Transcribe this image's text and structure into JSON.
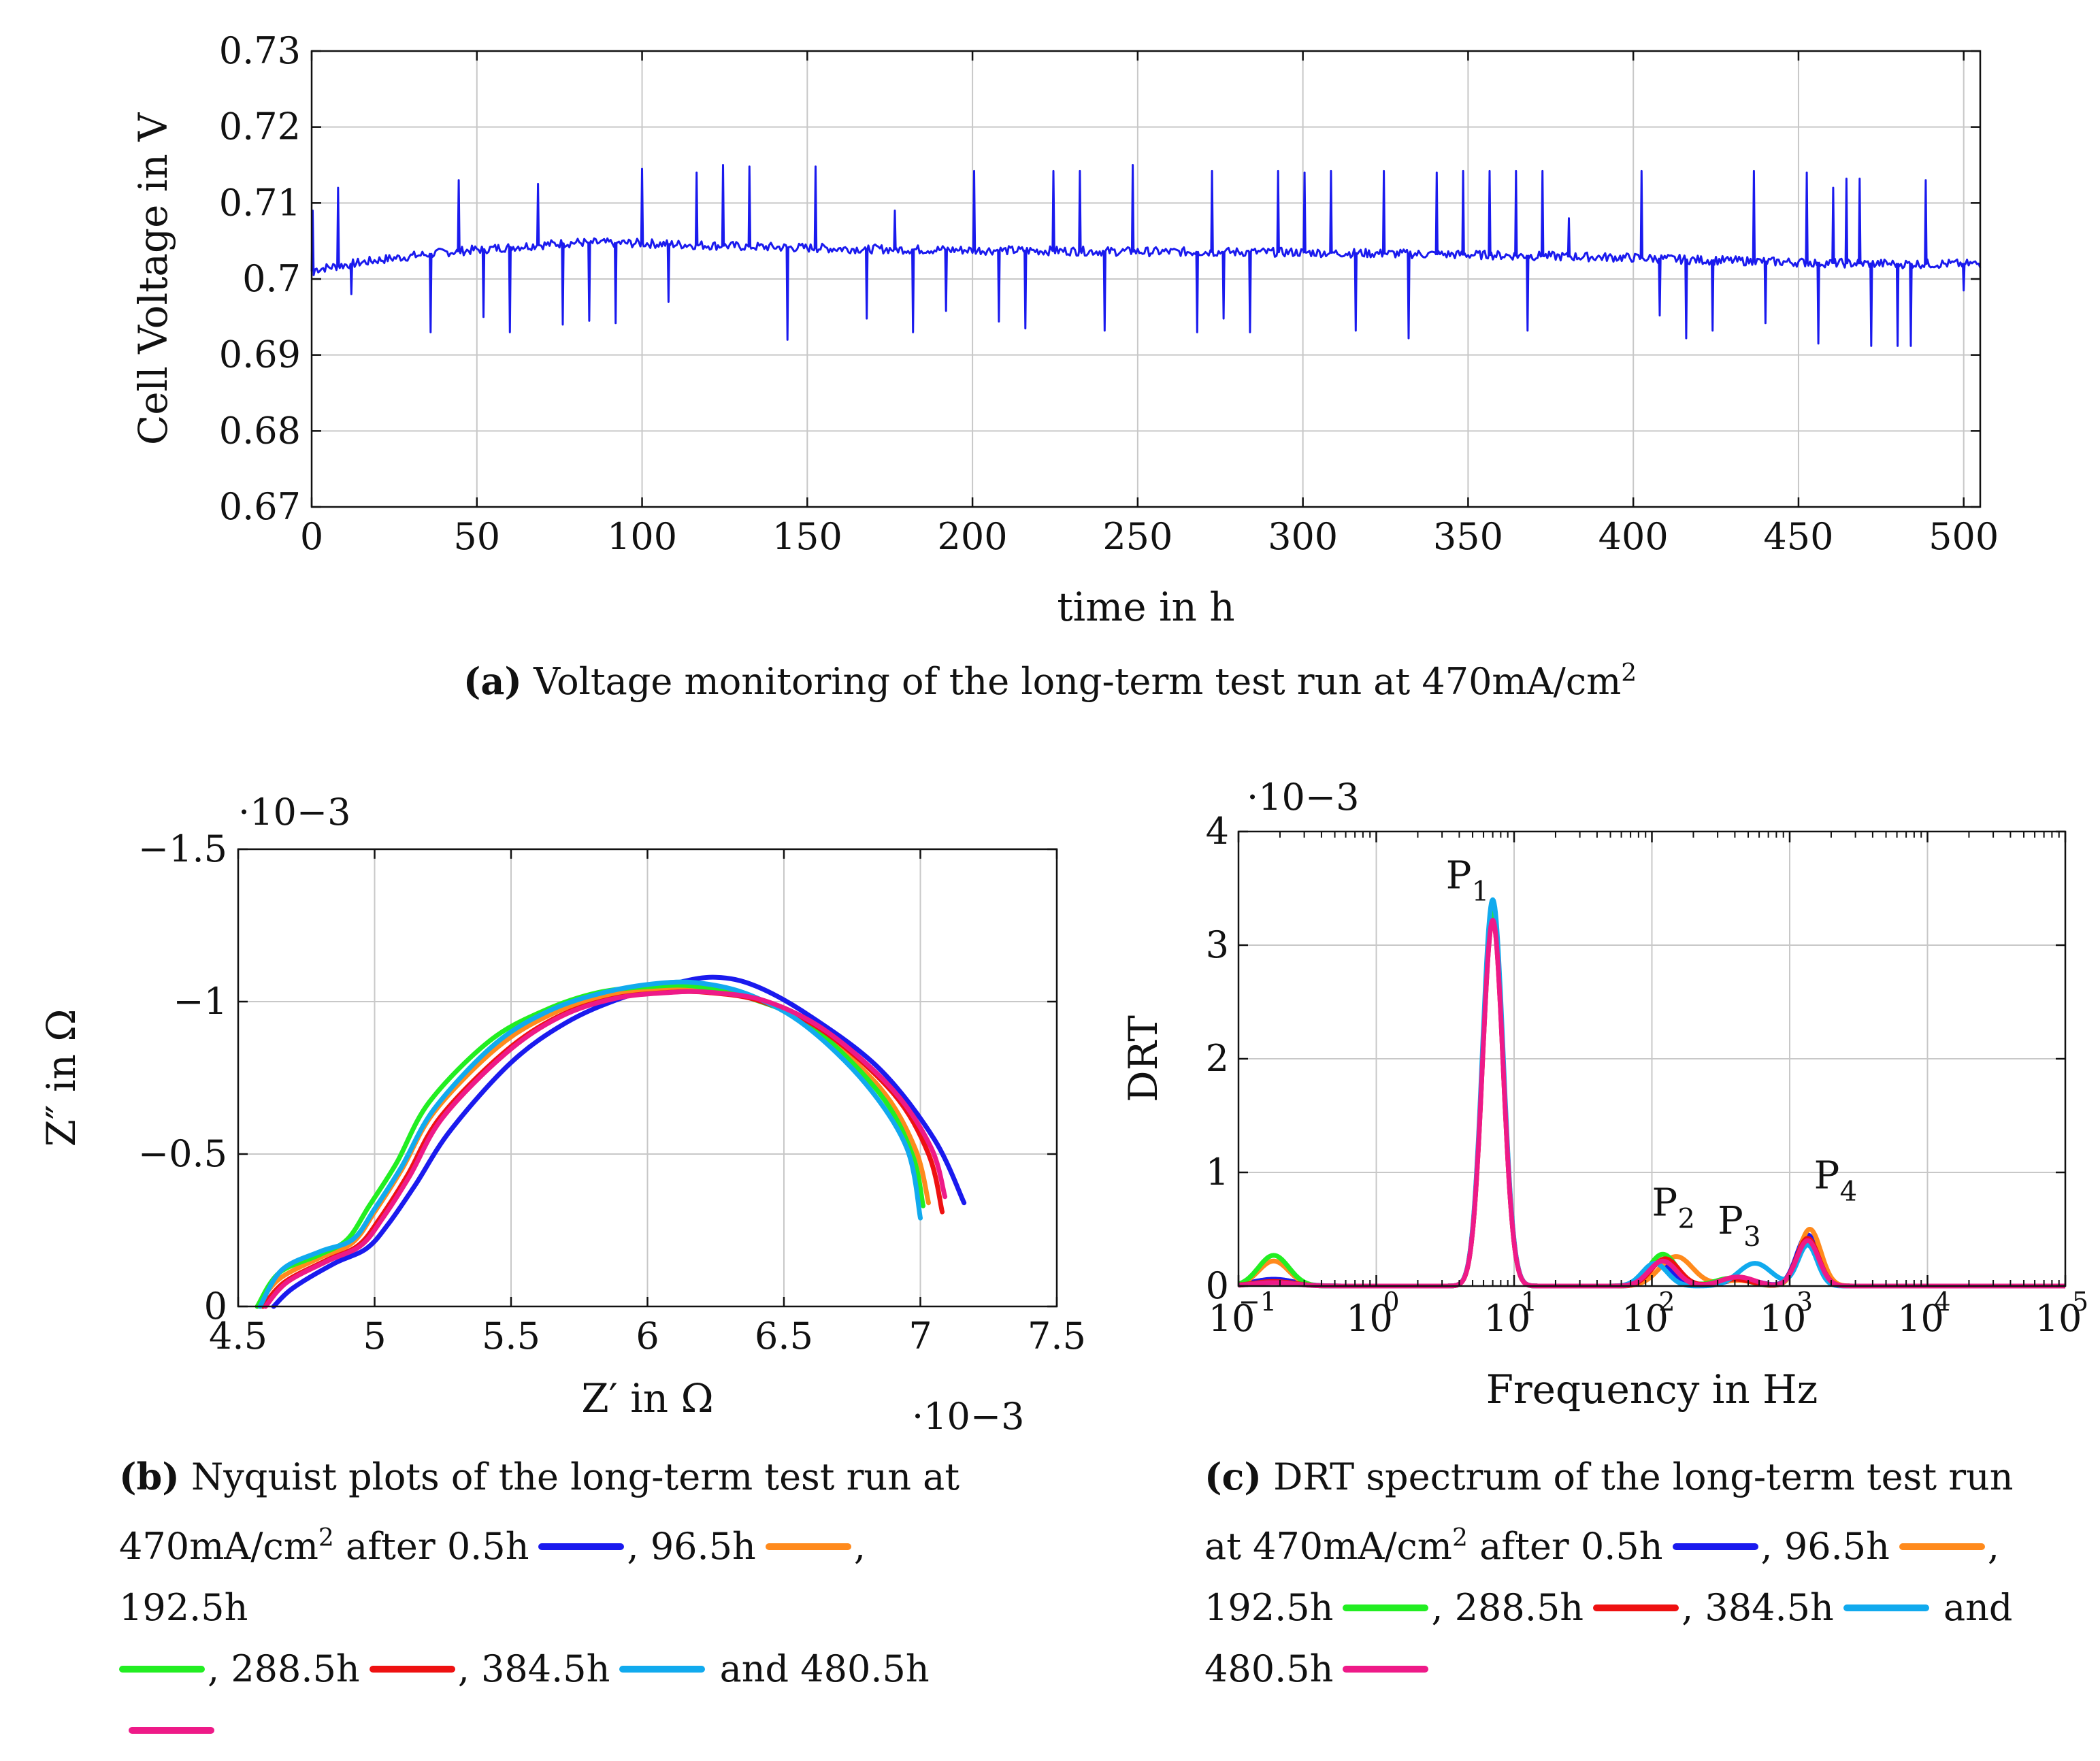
{
  "colors": {
    "s0": "#1a1aee",
    "s1": "#ff8a1c",
    "s2": "#22ee22",
    "s3": "#ee1111",
    "s4": "#11aaee",
    "s5": "#ee1a88"
  },
  "chart_data": [
    {
      "id": "a",
      "type": "line",
      "xlabel": "time in h",
      "ylabel": "Cell Voltage in V",
      "xlim": [
        0,
        505
      ],
      "ylim": [
        0.67,
        0.73
      ],
      "xticks": [
        0,
        50,
        100,
        150,
        200,
        250,
        300,
        350,
        400,
        450,
        500
      ],
      "xtick_labels": [
        "0",
        "50",
        "100",
        "150",
        "200",
        "250",
        "300",
        "350",
        "400",
        "450",
        "500"
      ],
      "yticks": [
        0.67,
        0.68,
        0.69,
        0.7,
        0.71,
        0.72,
        0.73
      ],
      "ytick_labels": [
        "0.67",
        "0.68",
        "0.69",
        "0.7",
        "0.71",
        "0.72",
        "0.73"
      ],
      "grid": true,
      "baseline": {
        "x": [
          0,
          20,
          40,
          60,
          80,
          100,
          130,
          160,
          200,
          250,
          300,
          350,
          400,
          420,
          440,
          460,
          480,
          505
        ],
        "y": [
          0.7012,
          0.7025,
          0.7035,
          0.7042,
          0.7048,
          0.7047,
          0.7043,
          0.704,
          0.7038,
          0.7036,
          0.7035,
          0.7032,
          0.7028,
          0.7025,
          0.7023,
          0.7021,
          0.702,
          0.702
        ]
      },
      "spikes_up": [
        {
          "x": 8,
          "y": 0.712
        },
        {
          "x": 44.5,
          "y": 0.713
        },
        {
          "x": 68.5,
          "y": 0.7125
        },
        {
          "x": 100,
          "y": 0.7145
        },
        {
          "x": 116.5,
          "y": 0.714
        },
        {
          "x": 124.5,
          "y": 0.715
        },
        {
          "x": 132.5,
          "y": 0.7148
        },
        {
          "x": 152.5,
          "y": 0.7148
        },
        {
          "x": 176.5,
          "y": 0.709
        },
        {
          "x": 200.5,
          "y": 0.7142
        },
        {
          "x": 224.5,
          "y": 0.7142
        },
        {
          "x": 232.5,
          "y": 0.7142
        },
        {
          "x": 248.5,
          "y": 0.715
        },
        {
          "x": 272.5,
          "y": 0.7142
        },
        {
          "x": 292.5,
          "y": 0.7142
        },
        {
          "x": 300.5,
          "y": 0.714
        },
        {
          "x": 308.5,
          "y": 0.7142
        },
        {
          "x": 324.5,
          "y": 0.7142
        },
        {
          "x": 340.5,
          "y": 0.714
        },
        {
          "x": 348.5,
          "y": 0.7142
        },
        {
          "x": 356.5,
          "y": 0.7142
        },
        {
          "x": 364.5,
          "y": 0.7142
        },
        {
          "x": 372.5,
          "y": 0.7142
        },
        {
          "x": 380.5,
          "y": 0.708
        },
        {
          "x": 402.5,
          "y": 0.7142
        },
        {
          "x": 436.5,
          "y": 0.7142
        },
        {
          "x": 452.5,
          "y": 0.714
        },
        {
          "x": 460.5,
          "y": 0.712
        },
        {
          "x": 464.5,
          "y": 0.7132
        },
        {
          "x": 468.5,
          "y": 0.7132
        },
        {
          "x": 488.5,
          "y": 0.713
        }
      ],
      "spikes_down": [
        {
          "x": 12,
          "y": 0.698
        },
        {
          "x": 36,
          "y": 0.693
        },
        {
          "x": 52,
          "y": 0.695
        },
        {
          "x": 60,
          "y": 0.693
        },
        {
          "x": 76,
          "y": 0.694
        },
        {
          "x": 84,
          "y": 0.6945
        },
        {
          "x": 92,
          "y": 0.6942
        },
        {
          "x": 108,
          "y": 0.697
        },
        {
          "x": 144,
          "y": 0.692
        },
        {
          "x": 168,
          "y": 0.6948
        },
        {
          "x": 182,
          "y": 0.693
        },
        {
          "x": 192,
          "y": 0.6958
        },
        {
          "x": 208,
          "y": 0.6944
        },
        {
          "x": 216,
          "y": 0.6935
        },
        {
          "x": 240,
          "y": 0.6932
        },
        {
          "x": 268,
          "y": 0.693
        },
        {
          "x": 276,
          "y": 0.6948
        },
        {
          "x": 284,
          "y": 0.693
        },
        {
          "x": 316,
          "y": 0.6932
        },
        {
          "x": 332,
          "y": 0.6922
        },
        {
          "x": 368,
          "y": 0.6932
        },
        {
          "x": 408,
          "y": 0.6952
        },
        {
          "x": 416,
          "y": 0.6922
        },
        {
          "x": 424,
          "y": 0.6932
        },
        {
          "x": 440,
          "y": 0.6942
        },
        {
          "x": 456,
          "y": 0.6915
        },
        {
          "x": 472,
          "y": 0.6912
        },
        {
          "x": 480,
          "y": 0.6912
        },
        {
          "x": 484,
          "y": 0.6912
        },
        {
          "x": 500,
          "y": 0.6985
        }
      ]
    },
    {
      "id": "b",
      "type": "line",
      "xlabel": "Z′ in Ω",
      "ylabel": "Z″ in Ω",
      "xlim": [
        4.5,
        7.5
      ],
      "ylim": [
        0,
        -1.5
      ],
      "x_scale_label": "·10−3",
      "y_scale_label": "·10−3",
      "xticks": [
        4.5,
        5,
        5.5,
        6,
        6.5,
        7,
        7.5
      ],
      "xtick_labels": [
        "4.5",
        "5",
        "5.5",
        "6",
        "6.5",
        "7",
        "7.5"
      ],
      "yticks": [
        0,
        -0.5,
        -1,
        -1.5
      ],
      "ytick_labels": [
        "0",
        "−0.5",
        "−1",
        "−1.5"
      ],
      "grid": true,
      "series": [
        {
          "name": "0.5h",
          "x": [
            4.63,
            4.7,
            4.85,
            4.97,
            5.05,
            5.15,
            5.28,
            5.5,
            5.7,
            5.9,
            6.1,
            6.25,
            6.4,
            6.6,
            6.85,
            7.05,
            7.16
          ],
          "y": [
            0,
            -0.06,
            -0.14,
            -0.19,
            -0.27,
            -0.4,
            -0.58,
            -0.8,
            -0.93,
            -1.01,
            -1.06,
            -1.08,
            -1.05,
            -0.95,
            -0.78,
            -0.55,
            -0.34
          ]
        },
        {
          "name": "96.5h",
          "x": [
            4.57,
            4.65,
            4.8,
            4.92,
            5.0,
            5.1,
            5.22,
            5.45,
            5.65,
            5.85,
            6.05,
            6.2,
            6.4,
            6.6,
            6.85,
            6.98,
            7.03
          ],
          "y": [
            0,
            -0.09,
            -0.16,
            -0.21,
            -0.31,
            -0.45,
            -0.64,
            -0.85,
            -0.96,
            -1.02,
            -1.04,
            -1.04,
            -1.01,
            -0.92,
            -0.72,
            -0.52,
            -0.34
          ]
        },
        {
          "name": "192.5h",
          "x": [
            4.57,
            4.65,
            4.8,
            4.9,
            4.98,
            5.08,
            5.2,
            5.42,
            5.62,
            5.82,
            6.02,
            6.18,
            6.38,
            6.6,
            6.85,
            6.97,
            7.01
          ],
          "y": [
            0,
            -0.11,
            -0.17,
            -0.22,
            -0.33,
            -0.47,
            -0.67,
            -0.87,
            -0.97,
            -1.03,
            -1.05,
            -1.05,
            -1.01,
            -0.92,
            -0.7,
            -0.5,
            -0.33
          ]
        },
        {
          "name": "288.5h",
          "x": [
            4.59,
            4.67,
            4.82,
            4.94,
            5.02,
            5.12,
            5.24,
            5.47,
            5.67,
            5.87,
            6.07,
            6.22,
            6.42,
            6.65,
            6.9,
            7.03,
            7.08
          ],
          "y": [
            0,
            -0.08,
            -0.15,
            -0.2,
            -0.29,
            -0.43,
            -0.62,
            -0.83,
            -0.95,
            -1.01,
            -1.03,
            -1.03,
            -1.0,
            -0.9,
            -0.7,
            -0.5,
            -0.31
          ]
        },
        {
          "name": "384.5h",
          "x": [
            4.58,
            4.66,
            4.8,
            4.92,
            5.0,
            5.1,
            5.22,
            5.44,
            5.64,
            5.84,
            6.04,
            6.2,
            6.38,
            6.58,
            6.8,
            6.95,
            7.0
          ],
          "y": [
            0,
            -0.12,
            -0.18,
            -0.22,
            -0.32,
            -0.46,
            -0.65,
            -0.86,
            -0.97,
            -1.03,
            -1.06,
            -1.06,
            -1.02,
            -0.92,
            -0.73,
            -0.52,
            -0.29
          ]
        },
        {
          "name": "480.5h",
          "x": [
            4.6,
            4.68,
            4.83,
            4.95,
            5.03,
            5.13,
            5.25,
            5.48,
            5.68,
            5.88,
            6.08,
            6.24,
            6.44,
            6.66,
            6.9,
            7.04,
            7.09
          ],
          "y": [
            0,
            -0.08,
            -0.15,
            -0.2,
            -0.29,
            -0.43,
            -0.62,
            -0.83,
            -0.95,
            -1.01,
            -1.03,
            -1.03,
            -1.0,
            -0.9,
            -0.71,
            -0.52,
            -0.36
          ]
        }
      ]
    },
    {
      "id": "c",
      "type": "line",
      "xlabel": "Frequency in Hz",
      "ylabel": "DRT",
      "x_scale": "log",
      "xlim": [
        0.1,
        100000
      ],
      "ylim": [
        0,
        4
      ],
      "y_scale_label": "·10−3",
      "xticks": [
        0.1,
        1,
        10,
        100,
        1000,
        10000,
        100000
      ],
      "xtick_bases": [
        "10",
        "10",
        "10",
        "10",
        "10",
        "10",
        "10"
      ],
      "xtick_exps": [
        "−1",
        "0",
        "1",
        "2",
        "3",
        "4",
        "5"
      ],
      "yticks": [
        0,
        1,
        2,
        3,
        4
      ],
      "ytick_labels": [
        "0",
        "1",
        "2",
        "3",
        "4"
      ],
      "grid": true,
      "peak_labels": [
        {
          "label": "P",
          "sub": "1",
          "x": 3.2,
          "y": 3.5
        },
        {
          "label": "P",
          "sub": "2",
          "x": 100,
          "y": 0.62
        },
        {
          "label": "P",
          "sub": "3",
          "x": 300,
          "y": 0.46
        },
        {
          "label": "P",
          "sub": "4",
          "x": 1500,
          "y": 0.86
        }
      ],
      "series": [
        {
          "name": "0.5h",
          "peaks": [
            [
              0.18,
              0.06,
              0.15
            ],
            [
              7,
              3.3,
              0.075
            ],
            [
              115,
              0.22,
              0.08
            ],
            [
              450,
              0.06,
              0.12
            ],
            [
              1350,
              0.45,
              0.08
            ]
          ]
        },
        {
          "name": "96.5h",
          "peaks": [
            [
              0.18,
              0.22,
              0.11
            ],
            [
              7,
              3.25,
              0.075
            ],
            [
              150,
              0.26,
              0.12
            ],
            [
              420,
              0.05,
              0.12
            ],
            [
              1400,
              0.5,
              0.08
            ]
          ]
        },
        {
          "name": "192.5h",
          "peaks": [
            [
              0.18,
              0.27,
              0.11
            ],
            [
              7,
              3.3,
              0.075
            ],
            [
              120,
              0.28,
              0.1
            ],
            [
              380,
              0.07,
              0.12
            ],
            [
              1350,
              0.4,
              0.08
            ]
          ]
        },
        {
          "name": "288.5h",
          "peaks": [
            [
              0.18,
              0.04,
              0.15
            ],
            [
              7,
              3.22,
              0.075
            ],
            [
              125,
              0.24,
              0.1
            ],
            [
              400,
              0.06,
              0.12
            ],
            [
              1350,
              0.42,
              0.08
            ]
          ]
        },
        {
          "name": "384.5h",
          "peaks": [
            [
              0.18,
              0.03,
              0.15
            ],
            [
              7,
              3.4,
              0.075
            ],
            [
              105,
              0.2,
              0.09
            ],
            [
              560,
              0.2,
              0.12
            ],
            [
              1350,
              0.36,
              0.07
            ]
          ]
        },
        {
          "name": "480.5h",
          "peaks": [
            [
              0.18,
              0.03,
              0.15
            ],
            [
              7,
              3.22,
              0.075
            ],
            [
              120,
              0.22,
              0.1
            ],
            [
              420,
              0.08,
              0.12
            ],
            [
              1350,
              0.4,
              0.08
            ]
          ]
        }
      ]
    }
  ],
  "captions": {
    "a": {
      "label": "(a)",
      "text": "Voltage monitoring of the long-term test run at 470mA/cm",
      "sup": "2"
    },
    "b": {
      "label": "(b)",
      "line1": "Nyquist plots of the long-term test run at",
      "line2_pre": "470mA/cm",
      "sup": "2",
      "line2_post": "after 0.5h",
      "e1": ", 96.5h",
      "e2": ", 192.5h",
      "e3": ", 288.5h",
      "e4": ", 384.5h",
      "e5": "and 480.5h"
    },
    "c": {
      "label": "(c)",
      "line1": "DRT spectrum of the long-term test run",
      "line2_pre": "at 470mA/cm",
      "sup": "2",
      "line2_post": "after 0.5h",
      "e1": ", 96.5h",
      "e2": "192.5h",
      "e3": ", 288.5h",
      "e4": ", 384.5h",
      "e5": "and",
      "e6": "480.5h"
    }
  }
}
